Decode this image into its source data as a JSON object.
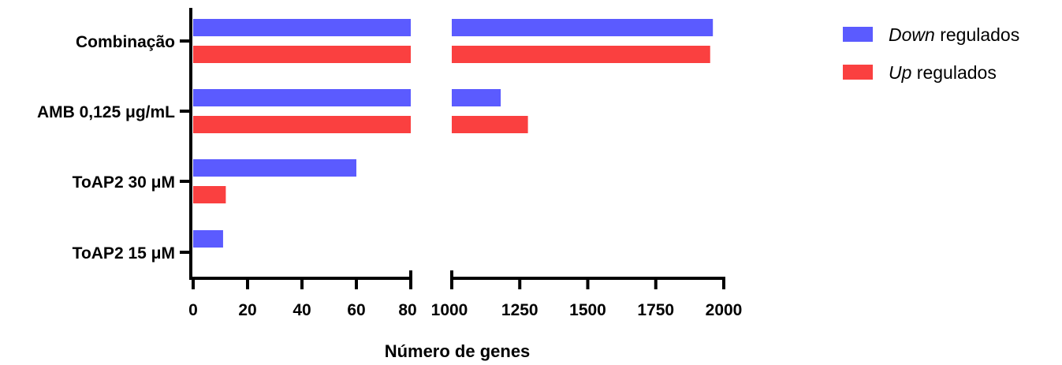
{
  "chart_data": {
    "type": "bar",
    "orientation": "horizontal",
    "categories": [
      "Combinação",
      "AMB 0,125 μg/mL",
      "ToAP2 30 μM",
      "ToAP2 15 μM"
    ],
    "series": [
      {
        "name_italic": "Down",
        "name_rest": " regulados",
        "color": "#5b5bff",
        "values": [
          1960,
          1180,
          60,
          11
        ]
      },
      {
        "name_italic": "Up",
        "name_rest": " regulados",
        "color": "#fa4040",
        "values": [
          1950,
          1280,
          12,
          0
        ]
      }
    ],
    "xlabel": "Número de genes",
    "ylabel": "",
    "x_axis_broken": true,
    "x_segments": [
      {
        "range": [
          0,
          80
        ],
        "ticks": [
          "0",
          "20",
          "40",
          "60",
          "80"
        ]
      },
      {
        "range": [
          1000,
          2000
        ],
        "ticks": [
          "1000",
          "1250",
          "1500",
          "1750",
          "2000"
        ]
      }
    ],
    "legend_position": "top-right",
    "grid": false
  }
}
